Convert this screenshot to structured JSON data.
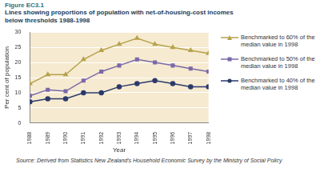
{
  "chart_data": {
    "type": "line",
    "figure_label": "Figure EC3.1",
    "title": "Lines showing proportions of population with net-of-housing-cost incomes below thresholds 1988-1998",
    "x_label": "Year",
    "y_label": "Per cent of population",
    "source": "Source: Derived from Statistics New Zealand's Household Economic Survey by the Ministry of Social Policy",
    "categories": [
      "1988",
      "1989",
      "1990",
      "1991",
      "1992",
      "1993",
      "1994",
      "1995",
      "1996",
      "1997",
      "1998"
    ],
    "series": [
      {
        "name": "Benchmarked to 60% of the median value in 1998",
        "color": "#b5a24a",
        "marker": "triangle",
        "values": [
          13,
          16,
          16,
          21,
          24,
          26,
          28,
          26,
          25,
          24,
          23
        ]
      },
      {
        "name": "Benchmarked to 50% of the median value in 1998",
        "color": "#7b68a8",
        "marker": "square",
        "values": [
          9,
          11,
          10.5,
          14,
          17,
          19,
          21,
          20,
          19,
          18,
          17
        ]
      },
      {
        "name": "Benchmarked to 40% of the median value in 1998",
        "color": "#2b3a6b",
        "marker": "circle",
        "values": [
          7,
          8,
          8,
          10,
          10,
          12,
          13,
          14,
          13,
          12,
          12
        ]
      }
    ],
    "ylim": [
      0,
      30
    ],
    "yticks": [
      0,
      5,
      10,
      15,
      20,
      25,
      30
    ],
    "grid": true,
    "legend": "right"
  }
}
